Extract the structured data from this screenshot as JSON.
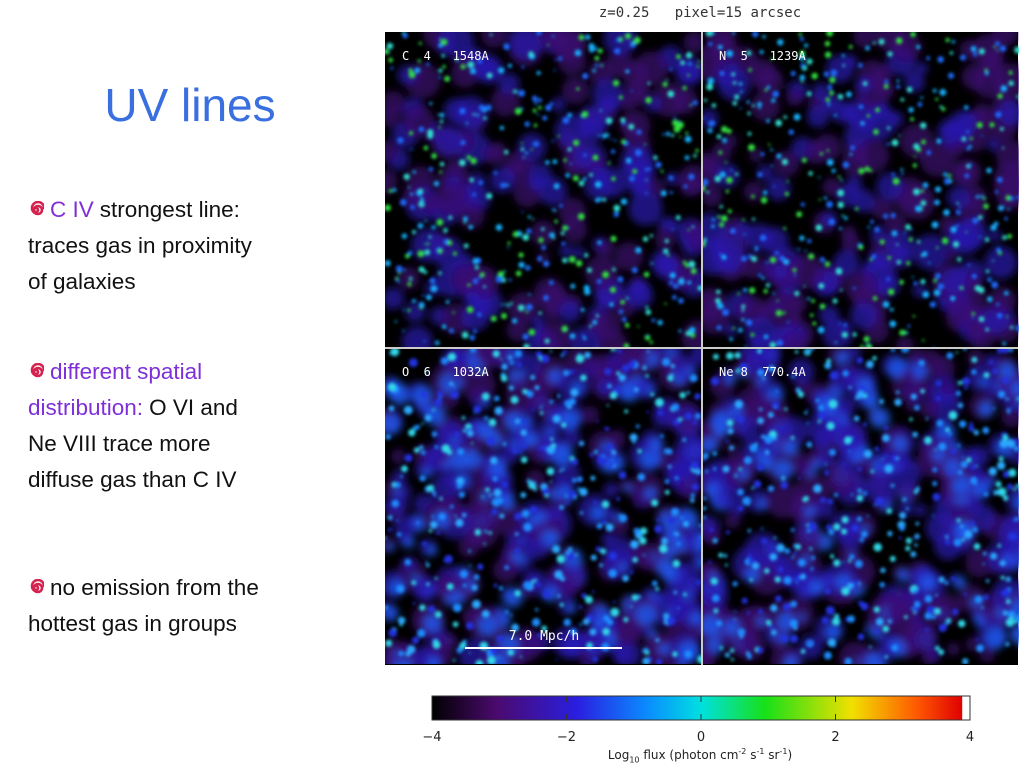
{
  "title": "UV lines",
  "bullets": [
    {
      "lines": [
        [
          {
            "text": "C IV",
            "color": "#7f2fd8"
          },
          {
            "text": "strongest line:"
          }
        ],
        [
          {
            "text": "traces gas in proximity"
          }
        ],
        [
          {
            "text": "of galaxies"
          }
        ]
      ]
    },
    {
      "lines": [
        [
          {
            "text": "different spatial",
            "color": "#7f2fd8"
          }
        ],
        [
          {
            "text": "distribution:",
            "color": "#7f2fd8"
          },
          {
            "text": "O VI and"
          }
        ],
        [
          {
            "text": "Ne VIII trace more"
          }
        ],
        [
          {
            "text": "diffuse gas than C IV"
          }
        ]
      ]
    },
    {
      "lines": [
        [
          {
            "text": "no emission from the"
          }
        ],
        [
          {
            "text": "hottest gas in groups"
          }
        ]
      ]
    }
  ],
  "figure": {
    "header": "z=0.25   pixel=15 arcsec",
    "panels": [
      {
        "label": "C  4   1548A"
      },
      {
        "label": "N  5   1239A"
      },
      {
        "label": "O  6   1032A"
      },
      {
        "label": "Ne 8  770.4A"
      }
    ],
    "scale_bar": "7.0 Mpc/h",
    "colorbar": {
      "lim": [
        -4,
        4
      ],
      "ticks": [
        {
          "value": -4,
          "label": "−4"
        },
        {
          "value": -2,
          "label": "−2"
        },
        0,
        2,
        4
      ],
      "label": [
        {
          "text": "Log"
        },
        {
          "text": "10",
          "sub": true
        },
        {
          "text": " flux (photon cm"
        },
        {
          "text": "-2",
          "sup": true
        },
        {
          "text": " s"
        },
        {
          "text": "-1",
          "sup": true
        },
        {
          "text": " sr"
        },
        {
          "text": "-1",
          "sup": true
        },
        {
          "text": ")"
        }
      ]
    }
  }
}
